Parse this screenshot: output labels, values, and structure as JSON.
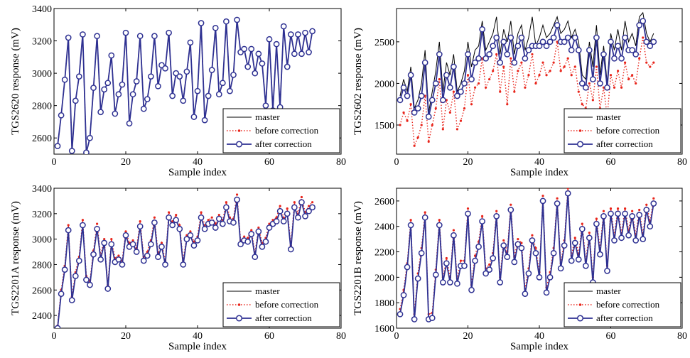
{
  "chart_data": [
    {
      "type": "line",
      "ylabel": "TGS2620 response (mV)",
      "xlabel": "Sample index",
      "xlim": [
        0,
        80
      ],
      "ylim": [
        2500,
        3400
      ],
      "xticks": [
        0,
        20,
        40,
        60,
        80
      ],
      "yticks": [
        2600,
        2800,
        3000,
        3200,
        3400
      ],
      "legend_position": "lower-right",
      "series": [
        {
          "name": "master",
          "color": "#000000",
          "style": "solid",
          "values": [
            2550,
            2740,
            2960,
            3220,
            2520,
            2830,
            2980,
            3240,
            2510,
            2600,
            2910,
            3230,
            2760,
            2900,
            2940,
            3110,
            2750,
            2870,
            2930,
            3250,
            2690,
            2870,
            2950,
            3230,
            2780,
            2840,
            2980,
            3230,
            2920,
            3050,
            3030,
            3250,
            2860,
            3000,
            2980,
            2830,
            3010,
            3190,
            2730,
            2890,
            3310,
            2710,
            2860,
            3020,
            3280,
            2870,
            2940,
            3320,
            2890,
            2990,
            3330,
            3130,
            3150,
            3040,
            3150,
            3000,
            3120,
            3060,
            2800,
            3210,
            2770,
            3180,
            2790,
            3290,
            3040,
            3240,
            3120,
            3240,
            3120,
            3250,
            3130,
            3260
          ]
        },
        {
          "name": "before correction",
          "color": "#e8251b",
          "style": "dotted",
          "values": [
            2550,
            2740,
            2960,
            3220,
            2520,
            2830,
            2980,
            3240,
            2510,
            2600,
            2910,
            3230,
            2760,
            2900,
            2940,
            3110,
            2750,
            2870,
            2930,
            3250,
            2690,
            2870,
            2950,
            3230,
            2780,
            2840,
            2980,
            3230,
            2920,
            3050,
            3030,
            3250,
            2860,
            3000,
            2980,
            2830,
            3010,
            3190,
            2730,
            2890,
            3310,
            2710,
            2860,
            3020,
            3280,
            2870,
            2940,
            3320,
            2890,
            2990,
            3330,
            3130,
            3150,
            3040,
            3150,
            3000,
            3120,
            3060,
            2800,
            3210,
            2770,
            3180,
            2790,
            3290,
            3040,
            3240,
            3120,
            3240,
            3120,
            3250,
            3130,
            3260
          ]
        },
        {
          "name": "after correction",
          "color": "#2e3192",
          "style": "solid-circle",
          "values": [
            2550,
            2740,
            2960,
            3220,
            2520,
            2830,
            2980,
            3240,
            2510,
            2600,
            2910,
            3230,
            2760,
            2900,
            2940,
            3110,
            2750,
            2870,
            2930,
            3250,
            2690,
            2870,
            2950,
            3230,
            2780,
            2840,
            2980,
            3230,
            2920,
            3050,
            3030,
            3250,
            2860,
            3000,
            2980,
            2830,
            3010,
            3190,
            2730,
            2890,
            3310,
            2710,
            2860,
            3020,
            3280,
            2870,
            2940,
            3320,
            2890,
            2990,
            3330,
            3130,
            3150,
            3040,
            3150,
            3000,
            3120,
            3060,
            2800,
            3210,
            2770,
            3180,
            2790,
            3290,
            3040,
            3240,
            3120,
            3240,
            3120,
            3250,
            3130,
            3260
          ]
        }
      ]
    },
    {
      "type": "line",
      "ylabel": "TGS2602 response (mV)",
      "xlabel": "Sample index",
      "xlim": [
        0,
        80
      ],
      "ylim": [
        1150,
        2900
      ],
      "xticks": [
        0,
        20,
        40,
        60,
        80
      ],
      "yticks": [
        1500,
        2000,
        2500
      ],
      "legend_position": "lower-right",
      "series": [
        {
          "name": "master",
          "color": "#000000",
          "style": "solid",
          "values": [
            1850,
            2050,
            1900,
            2200,
            1700,
            1800,
            2000,
            2400,
            1650,
            1900,
            2150,
            2500,
            1900,
            2250,
            2100,
            2350,
            1900,
            2000,
            2150,
            2500,
            2200,
            2400,
            2450,
            2750,
            2400,
            2500,
            2600,
            2800,
            2350,
            2650,
            2500,
            2750,
            2350,
            2600,
            2700,
            2400,
            2550,
            2800,
            2450,
            2550,
            2700,
            2550,
            2600,
            2700,
            2800,
            2600,
            2650,
            2750,
            2550,
            2650,
            2500,
            2100,
            2050,
            2500,
            2200,
            2700,
            2100,
            2450,
            2000,
            2600,
            2400,
            2650,
            2400,
            2750,
            2500,
            2600,
            2450,
            2800,
            2850,
            2600,
            2500,
            2600
          ]
        },
        {
          "name": "before correction",
          "color": "#e8251b",
          "style": "dotted",
          "values": [
            1500,
            1650,
            1550,
            1750,
            1250,
            1350,
            1500,
            1850,
            1300,
            1500,
            1700,
            2050,
            1450,
            1800,
            1650,
            1900,
            1450,
            1550,
            1700,
            2100,
            1750,
            1950,
            2000,
            2300,
            1950,
            2050,
            2150,
            2350,
            1900,
            2200,
            1750,
            2300,
            1900,
            2150,
            2250,
            1950,
            2100,
            2350,
            2000,
            2100,
            2250,
            2100,
            2150,
            2250,
            2500,
            2150,
            2200,
            2300,
            2100,
            2200,
            1900,
            1750,
            1700,
            2000,
            1800,
            2200,
            1700,
            1950,
            1600,
            2100,
            1950,
            2150,
            1950,
            2250,
            2050,
            2100,
            2000,
            2300,
            2550,
            2250,
            2200,
            2250
          ]
        },
        {
          "name": "after correction",
          "color": "#2e3192",
          "style": "solid-circle",
          "values": [
            1800,
            1950,
            1850,
            2100,
            1650,
            1700,
            1850,
            2250,
            1600,
            1800,
            2000,
            2350,
            1800,
            2100,
            1950,
            2200,
            1850,
            1900,
            2000,
            2350,
            2050,
            2250,
            2300,
            2650,
            2300,
            2350,
            2450,
            2550,
            2250,
            2500,
            2350,
            2550,
            2250,
            2450,
            2550,
            2300,
            2400,
            2450,
            2450,
            2450,
            2500,
            2450,
            2500,
            2550,
            2700,
            2500,
            2500,
            2550,
            2400,
            2550,
            2400,
            2000,
            1950,
            2400,
            2050,
            2550,
            2000,
            2350,
            1950,
            2500,
            2300,
            2450,
            2300,
            2550,
            2400,
            2400,
            2350,
            2700,
            2750,
            2500,
            2450,
            2500
          ]
        }
      ]
    },
    {
      "type": "line",
      "ylabel": "TGS2201A response (mV)",
      "xlabel": "Sample index",
      "xlim": [
        0,
        80
      ],
      "ylim": [
        2300,
        3400
      ],
      "xticks": [
        0,
        20,
        40,
        60,
        80
      ],
      "yticks": [
        2400,
        2600,
        2800,
        3000,
        3200,
        3400
      ],
      "legend_position": "lower-right",
      "series": [
        {
          "name": "master",
          "color": "#000000",
          "style": "solid",
          "values": [
            2300,
            2570,
            2760,
            3070,
            2520,
            2710,
            2830,
            3110,
            2680,
            2640,
            2880,
            3080,
            2840,
            2970,
            2610,
            2960,
            2820,
            2840,
            2800,
            3030,
            2940,
            2960,
            2900,
            3100,
            2830,
            2870,
            2960,
            3130,
            2860,
            2940,
            2800,
            3170,
            3110,
            3150,
            3080,
            2800,
            3000,
            3030,
            2950,
            2990,
            3170,
            3080,
            3120,
            3130,
            3090,
            3160,
            3120,
            3250,
            3140,
            3130,
            3310,
            2960,
            2990,
            2980,
            3040,
            2860,
            3060,
            2940,
            2980,
            3090,
            3120,
            3140,
            3220,
            3140,
            3200,
            2920,
            3250,
            3170,
            3290,
            3180,
            3220,
            3250
          ]
        },
        {
          "name": "before correction",
          "color": "#e8251b",
          "style": "dotted",
          "values": [
            2320,
            2600,
            2790,
            3110,
            2550,
            2740,
            2860,
            3150,
            2710,
            2670,
            2910,
            3120,
            2870,
            3000,
            2640,
            3000,
            2850,
            2870,
            2830,
            3060,
            2970,
            2990,
            2930,
            3140,
            2860,
            2900,
            2990,
            3170,
            2890,
            2970,
            2830,
            3210,
            3140,
            3190,
            3110,
            2830,
            3030,
            3060,
            2980,
            3020,
            3210,
            3110,
            3150,
            3170,
            3120,
            3190,
            3150,
            3290,
            3170,
            3160,
            3350,
            2990,
            3020,
            3010,
            3070,
            2890,
            3090,
            2970,
            3010,
            3120,
            3150,
            3170,
            3260,
            3170,
            3240,
            2950,
            3290,
            3200,
            3330,
            3210,
            3260,
            3290
          ]
        },
        {
          "name": "after correction",
          "color": "#2e3192",
          "style": "solid-circle",
          "values": [
            2300,
            2570,
            2760,
            3070,
            2520,
            2710,
            2830,
            3110,
            2680,
            2640,
            2880,
            3080,
            2840,
            2970,
            2610,
            2960,
            2820,
            2840,
            2800,
            3030,
            2940,
            2960,
            2900,
            3100,
            2830,
            2870,
            2960,
            3130,
            2860,
            2940,
            2800,
            3170,
            3110,
            3150,
            3080,
            2800,
            3000,
            3030,
            2950,
            2990,
            3170,
            3080,
            3120,
            3130,
            3090,
            3160,
            3120,
            3250,
            3140,
            3130,
            3310,
            2960,
            2990,
            2980,
            3040,
            2860,
            3060,
            2940,
            2980,
            3090,
            3120,
            3140,
            3220,
            3140,
            3200,
            2920,
            3250,
            3170,
            3290,
            3180,
            3220,
            3250
          ]
        }
      ]
    },
    {
      "type": "line",
      "ylabel": "TGS2201B response (mV)",
      "xlabel": "Sample index",
      "xlim": [
        0,
        80
      ],
      "ylim": [
        1600,
        2700
      ],
      "xticks": [
        0,
        20,
        40,
        60,
        80
      ],
      "yticks": [
        1600,
        1800,
        2000,
        2200,
        2400,
        2600
      ],
      "legend_position": "lower-right",
      "series": [
        {
          "name": "master",
          "color": "#000000",
          "style": "solid",
          "values": [
            1710,
            1860,
            2080,
            2410,
            1670,
            1990,
            2190,
            2470,
            1670,
            1680,
            2020,
            2410,
            1960,
            2110,
            1960,
            2330,
            1950,
            2090,
            2090,
            2500,
            1900,
            2130,
            2240,
            2440,
            2030,
            2060,
            2150,
            2480,
            1960,
            2250,
            2160,
            2530,
            2120,
            2260,
            2230,
            1870,
            2030,
            2290,
            2190,
            2000,
            2600,
            1880,
            2000,
            2190,
            2580,
            2070,
            2250,
            2660,
            2130,
            2270,
            2140,
            2380,
            2090,
            2310,
            1960,
            2420,
            2180,
            2480,
            2050,
            2500,
            2290,
            2500,
            2310,
            2500,
            2330,
            2480,
            2290,
            2490,
            2300,
            2530,
            2400,
            2580
          ]
        },
        {
          "name": "before correction",
          "color": "#e8251b",
          "style": "dotted",
          "values": [
            1750,
            1900,
            2110,
            2450,
            1710,
            2030,
            2230,
            2510,
            1710,
            1720,
            2060,
            2450,
            2000,
            2150,
            2000,
            2370,
            1990,
            2130,
            2130,
            2540,
            1940,
            2170,
            2280,
            2480,
            2070,
            2100,
            2190,
            2520,
            2000,
            2290,
            2200,
            2570,
            2160,
            2300,
            2270,
            1910,
            2070,
            2330,
            2230,
            2040,
            2640,
            1920,
            2040,
            2230,
            2620,
            2110,
            2290,
            2700,
            2170,
            2310,
            2180,
            2420,
            2130,
            2350,
            2000,
            2460,
            2220,
            2520,
            2090,
            2540,
            2330,
            2540,
            2350,
            2540,
            2370,
            2520,
            2330,
            2530,
            2340,
            2570,
            2440,
            2620
          ]
        },
        {
          "name": "after correction",
          "color": "#2e3192",
          "style": "solid-circle",
          "values": [
            1710,
            1860,
            2080,
            2410,
            1670,
            1990,
            2190,
            2470,
            1670,
            1680,
            2020,
            2410,
            1960,
            2110,
            1960,
            2330,
            1950,
            2090,
            2090,
            2500,
            1900,
            2130,
            2240,
            2440,
            2030,
            2060,
            2150,
            2480,
            1960,
            2250,
            2160,
            2530,
            2120,
            2260,
            2230,
            1870,
            2030,
            2290,
            2190,
            2000,
            2600,
            1880,
            2000,
            2190,
            2580,
            2070,
            2250,
            2660,
            2130,
            2270,
            2140,
            2380,
            2090,
            2310,
            1960,
            2420,
            2180,
            2480,
            2050,
            2500,
            2290,
            2500,
            2310,
            2500,
            2330,
            2480,
            2290,
            2490,
            2300,
            2530,
            2400,
            2580
          ]
        }
      ]
    }
  ]
}
